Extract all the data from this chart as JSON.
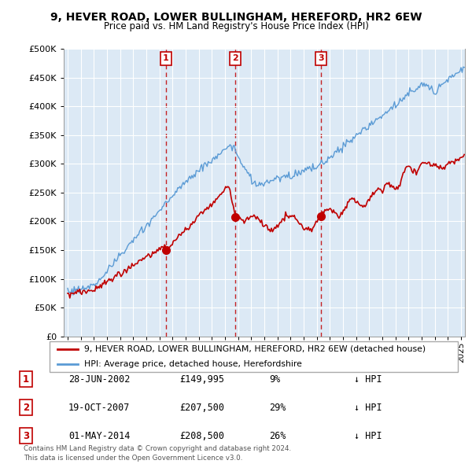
{
  "title": "9, HEVER ROAD, LOWER BULLINGHAM, HEREFORD, HR2 6EW",
  "subtitle": "Price paid vs. HM Land Registry's House Price Index (HPI)",
  "legend_line1": "9, HEVER ROAD, LOWER BULLINGHAM, HEREFORD, HR2 6EW (detached house)",
  "legend_line2": "HPI: Average price, detached house, Herefordshire",
  "footer1": "Contains HM Land Registry data © Crown copyright and database right 2024.",
  "footer2": "This data is licensed under the Open Government Licence v3.0.",
  "transactions": [
    {
      "num": 1,
      "date": "28-JUN-2002",
      "price": 149995,
      "price_str": "£149,995",
      "pct": "9%",
      "dir": "↓"
    },
    {
      "num": 2,
      "date": "19-OCT-2007",
      "price": 207500,
      "price_str": "£207,500",
      "pct": "29%",
      "dir": "↓"
    },
    {
      "num": 3,
      "date": "01-MAY-2014",
      "price": 208500,
      "price_str": "£208,500",
      "pct": "26%",
      "dir": "↓"
    }
  ],
  "transaction_dates_decimal": [
    2002.487,
    2007.797,
    2014.329
  ],
  "transaction_prices": [
    149995,
    207500,
    208500
  ],
  "hpi_color": "#5b9bd5",
  "price_color": "#c00000",
  "marker_color": "#c00000",
  "vline_color": "#c00000",
  "chart_bg": "#dce9f5",
  "ylim": [
    0,
    500000
  ],
  "yticks": [
    0,
    50000,
    100000,
    150000,
    200000,
    250000,
    300000,
    350000,
    400000,
    450000,
    500000
  ],
  "xlim_start": 1994.7,
  "xlim_end": 2025.3
}
